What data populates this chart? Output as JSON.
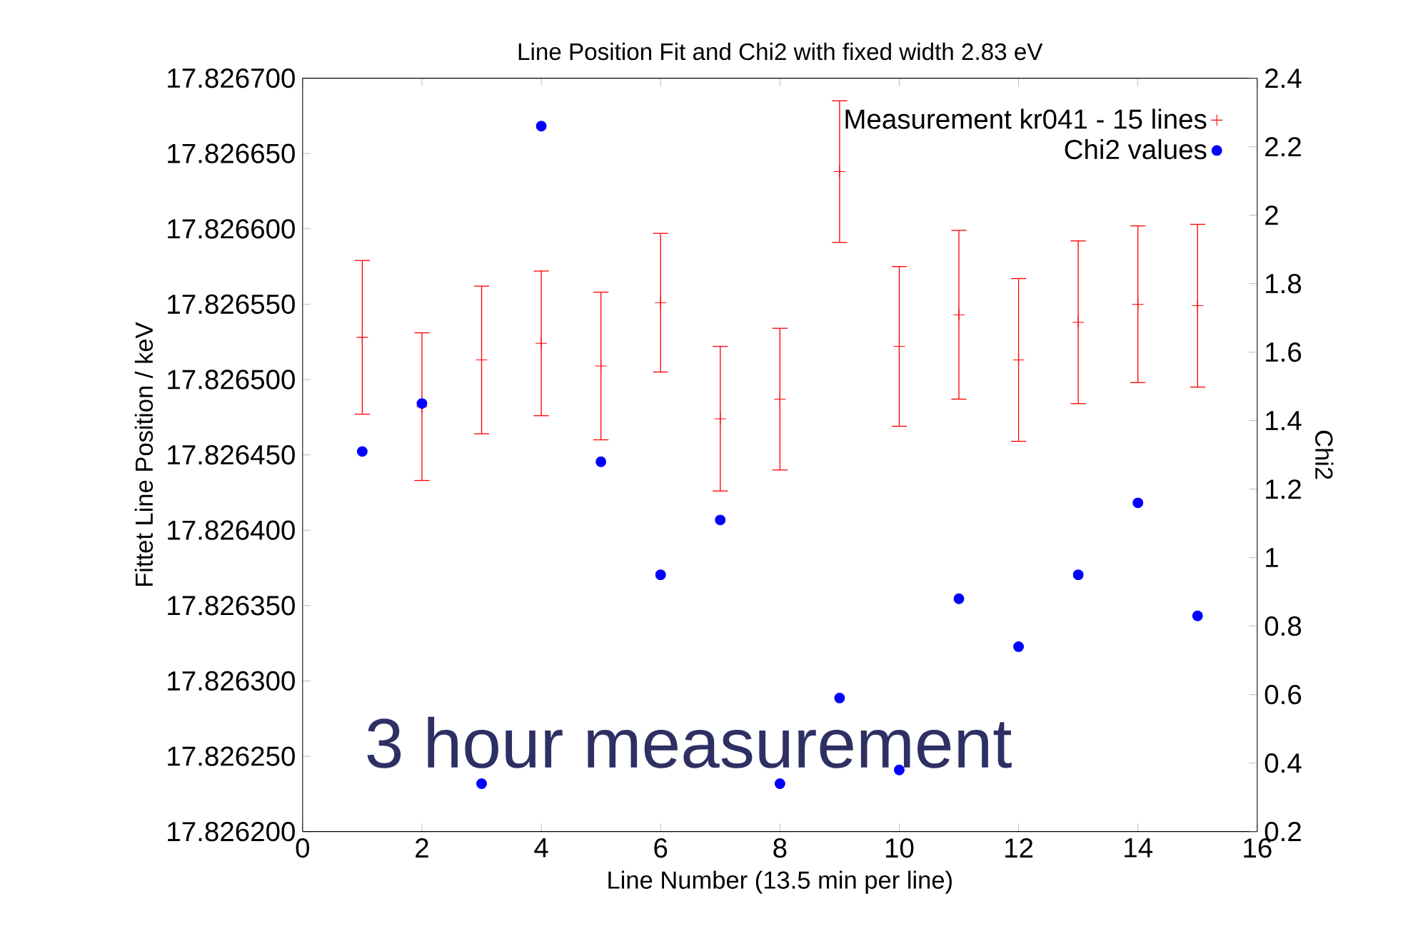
{
  "chart_data": {
    "type": "scatter",
    "title": "Line Position Fit and Chi2 with fixed width 2.83 eV",
    "xlabel": "Line Number (13.5 min per line)",
    "ylabel": "Fittet Line Position / keV",
    "y2label": "Chi2",
    "annotations": [
      "3 hour measurement"
    ],
    "x": [
      1,
      2,
      3,
      4,
      5,
      6,
      7,
      8,
      9,
      10,
      11,
      12,
      13,
      14,
      15
    ],
    "series": [
      {
        "name": "Measurement kr041 - 15 lines",
        "color": "#ff0000",
        "marker": "cross",
        "values": [
          17.826528,
          17.826482,
          17.826513,
          17.826524,
          17.826509,
          17.826551,
          17.826474,
          17.826487,
          17.826638,
          17.826522,
          17.826543,
          17.826513,
          17.826538,
          17.82655,
          17.826549
        ],
        "errors": [
          5.1e-05,
          4.9e-05,
          4.9e-05,
          4.8e-05,
          4.9e-05,
          4.6e-05,
          4.8e-05,
          4.7e-05,
          4.7e-05,
          5.3e-05,
          5.6e-05,
          5.4e-05,
          5.4e-05,
          5.2e-05,
          5.4e-05
        ]
      },
      {
        "name": "Chi2 values",
        "color": "#0000ff",
        "marker": "circle",
        "axis": "y2",
        "values": [
          1.31,
          1.45,
          0.34,
          2.26,
          1.28,
          0.95,
          1.11,
          0.34,
          0.59,
          0.38,
          0.88,
          0.74,
          0.95,
          1.16,
          0.83
        ]
      }
    ],
    "xlim": [
      0,
      16
    ],
    "xticks": [
      0,
      2,
      4,
      6,
      8,
      10,
      12,
      14,
      16
    ],
    "ylim": [
      17.8262,
      17.8267
    ],
    "yticks": [
      {
        "value": 17.8262,
        "label": "17.826200"
      },
      {
        "value": 17.82625,
        "label": "17.826250"
      },
      {
        "value": 17.8263,
        "label": "17.826300"
      },
      {
        "value": 17.82635,
        "label": "17.826350"
      },
      {
        "value": 17.8264,
        "label": "17.826400"
      },
      {
        "value": 17.82645,
        "label": "17.826450"
      },
      {
        "value": 17.8265,
        "label": "17.826500"
      },
      {
        "value": 17.82655,
        "label": "17.826550"
      },
      {
        "value": 17.8266,
        "label": "17.826600"
      },
      {
        "value": 17.82665,
        "label": "17.826650"
      },
      {
        "value": 17.8267,
        "label": "17.826700"
      }
    ],
    "y2lim": [
      0.2,
      2.4
    ],
    "y2ticks": [
      0.2,
      0.4,
      0.6,
      0.8,
      1,
      1.2,
      1.4,
      1.6,
      1.8,
      2,
      2.2,
      2.4
    ],
    "legend": "top right",
    "grid": false
  }
}
